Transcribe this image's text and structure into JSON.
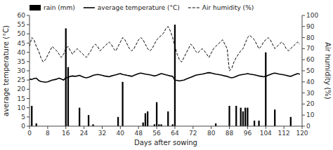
{
  "chart_data": {
    "type": "bar",
    "xlabel": "Days after sowing",
    "ylabel": "average temperature (°C)",
    "y2label": "Air humidity (%)",
    "xlim": [
      0,
      120
    ],
    "ylim": [
      0,
      60
    ],
    "y2lim": [
      0,
      100
    ],
    "xticks": [
      0,
      8,
      16,
      24,
      32,
      40,
      48,
      56,
      64,
      72,
      80,
      88,
      96,
      104,
      112,
      120
    ],
    "yticks": [
      0,
      5,
      10,
      15,
      20,
      25,
      30,
      35,
      40,
      45,
      50,
      55,
      60
    ],
    "y2ticks": [
      0,
      10,
      20,
      30,
      40,
      50,
      60,
      70,
      80,
      90,
      100
    ],
    "legend": "upper left",
    "grid": false,
    "series": [
      {
        "name": "rain (mm)",
        "type": "bar",
        "color": "#000000",
        "x": [
          1,
          3,
          16,
          17,
          22,
          26,
          28,
          39,
          41,
          50,
          51,
          52,
          55,
          56,
          57,
          58,
          61,
          63,
          64,
          82,
          88,
          91,
          93,
          94,
          95,
          96,
          99,
          101,
          104,
          108,
          115
        ],
        "values": [
          11,
          1.5,
          53,
          32,
          10,
          6,
          1,
          5,
          24,
          2,
          7,
          8,
          1,
          13,
          1,
          1,
          8,
          1,
          55,
          1.5,
          11,
          11,
          10,
          8,
          10,
          10,
          3,
          3,
          40,
          9,
          5
        ]
      },
      {
        "name": "average temperature (°C)",
        "type": "line",
        "line_style": "solid",
        "color": "#000000",
        "x": [
          0,
          1,
          2,
          3,
          4,
          5,
          6,
          7,
          8,
          9,
          10,
          11,
          12,
          13,
          14,
          15,
          16,
          17,
          18,
          19,
          20,
          21,
          22,
          23,
          24,
          25,
          26,
          27,
          28,
          29,
          30,
          31,
          32,
          33,
          34,
          35,
          36,
          37,
          38,
          39,
          40,
          41,
          42,
          43,
          44,
          45,
          46,
          47,
          48,
          49,
          50,
          51,
          52,
          53,
          54,
          55,
          56,
          57,
          58,
          59,
          60,
          61,
          62,
          63,
          64,
          65,
          66,
          67,
          68,
          69,
          70,
          71,
          72,
          73,
          74,
          75,
          76,
          77,
          78,
          79,
          80,
          81,
          82,
          83,
          84,
          85,
          86,
          87,
          88,
          89,
          90,
          91,
          92,
          93,
          94,
          95,
          96,
          97,
          98,
          99,
          100,
          101,
          102,
          103,
          104,
          105,
          106,
          107,
          108,
          109,
          110,
          111,
          112,
          113,
          114,
          115,
          116,
          117,
          118,
          119
        ],
        "values": [
          25.5,
          25.3,
          25.8,
          26.0,
          24.8,
          24.2,
          24.0,
          23.8,
          24.0,
          24.5,
          25.0,
          25.2,
          25.5,
          26.0,
          25.5,
          25.0,
          26.2,
          26.5,
          27.0,
          27.2,
          27.0,
          27.2,
          27.5,
          27.0,
          26.5,
          26.2,
          26.5,
          27.0,
          27.5,
          27.8,
          28.0,
          27.8,
          27.5,
          27.2,
          27.0,
          26.8,
          27.2,
          27.5,
          27.8,
          28.2,
          28.5,
          28.0,
          27.8,
          27.5,
          27.3,
          27.0,
          27.5,
          28.0,
          28.5,
          28.8,
          28.5,
          28.2,
          28.0,
          27.8,
          27.5,
          27.2,
          27.5,
          28.0,
          28.5,
          28.2,
          27.8,
          27.5,
          27.2,
          27.0,
          25.0,
          24.8,
          24.5,
          24.8,
          25.0,
          25.5,
          26.0,
          26.5,
          27.0,
          27.5,
          27.8,
          28.0,
          28.2,
          28.5,
          28.8,
          29.0,
          28.8,
          28.5,
          28.2,
          28.0,
          27.8,
          27.5,
          27.2,
          27.0,
          26.5,
          26.2,
          26.5,
          27.0,
          27.5,
          27.8,
          28.0,
          28.2,
          28.5,
          28.2,
          28.0,
          27.8,
          27.5,
          27.2,
          27.0,
          26.8,
          27.0,
          27.5,
          28.0,
          28.5,
          28.8,
          28.5,
          28.2,
          28.0,
          27.8,
          27.5,
          27.2,
          27.0,
          27.5,
          28.0,
          28.5,
          28.2
        ]
      },
      {
        "name": "Air humidity (%)",
        "type": "line",
        "line_style": "dashed",
        "color": "#000000",
        "axis": "y2",
        "x": [
          0,
          1,
          2,
          3,
          4,
          5,
          6,
          7,
          8,
          9,
          10,
          11,
          12,
          13,
          14,
          15,
          16,
          17,
          18,
          19,
          20,
          21,
          22,
          23,
          24,
          25,
          26,
          27,
          28,
          29,
          30,
          31,
          32,
          33,
          34,
          35,
          36,
          37,
          38,
          39,
          40,
          41,
          42,
          43,
          44,
          45,
          46,
          47,
          48,
          49,
          50,
          51,
          52,
          53,
          54,
          55,
          56,
          57,
          58,
          59,
          60,
          61,
          62,
          63,
          64,
          65,
          66,
          67,
          68,
          69,
          70,
          71,
          72,
          73,
          74,
          75,
          76,
          77,
          78,
          79,
          80,
          81,
          82,
          83,
          84,
          85,
          86,
          87,
          88,
          89,
          90,
          91,
          92,
          93,
          94,
          95,
          96,
          97,
          98,
          99,
          100,
          101,
          102,
          103,
          104,
          105,
          106,
          107,
          108,
          109,
          110,
          111,
          112,
          113,
          114,
          115,
          116,
          117,
          118,
          119
        ],
        "values": [
          72,
          80,
          78,
          72,
          68,
          62,
          58,
          60,
          64,
          68,
          72,
          70,
          68,
          65,
          62,
          65,
          70,
          72,
          68,
          65,
          68,
          70,
          68,
          66,
          64,
          62,
          65,
          68,
          72,
          74,
          72,
          68,
          70,
          72,
          74,
          76,
          74,
          70,
          68,
          72,
          76,
          80,
          78,
          74,
          70,
          68,
          70,
          74,
          78,
          80,
          78,
          74,
          70,
          68,
          70,
          74,
          78,
          80,
          82,
          84,
          88,
          90,
          86,
          80,
          72,
          65,
          60,
          58,
          62,
          66,
          70,
          74,
          72,
          68,
          66,
          68,
          70,
          68,
          65,
          62,
          66,
          70,
          72,
          74,
          76,
          78,
          74,
          70,
          50,
          52,
          58,
          62,
          65,
          68,
          70,
          75,
          80,
          82,
          80,
          78,
          74,
          70,
          72,
          76,
          78,
          80,
          78,
          74,
          70,
          72,
          74,
          76,
          74,
          70,
          68,
          70,
          72,
          74,
          76,
          74
        ]
      }
    ]
  }
}
